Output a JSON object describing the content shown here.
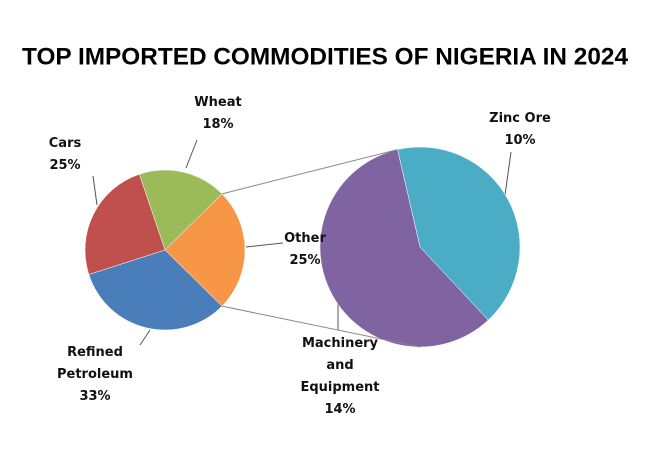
{
  "chart_data": {
    "type": "pie-of-pie",
    "title": "TOP IMPORTED COMMODITIES OF NIGERIA IN 2024",
    "categories": [
      "Wheat",
      "Other",
      "Refined Petroleum",
      "Cars"
    ],
    "values": [
      18,
      25,
      33,
      25
    ],
    "value_labels": [
      "18%",
      "25%",
      "33%",
      "25%"
    ],
    "colors": [
      "#9bbb59",
      "#f79646",
      "#4a7ebb",
      "#c0504d"
    ],
    "secondary": {
      "categories": [
        "Zinc Ore",
        "Machinery and Equipment"
      ],
      "values": [
        10,
        14
      ],
      "value_labels": [
        "10%",
        "14%"
      ],
      "colors": [
        "#4bacc6",
        "#8064a2"
      ]
    }
  }
}
